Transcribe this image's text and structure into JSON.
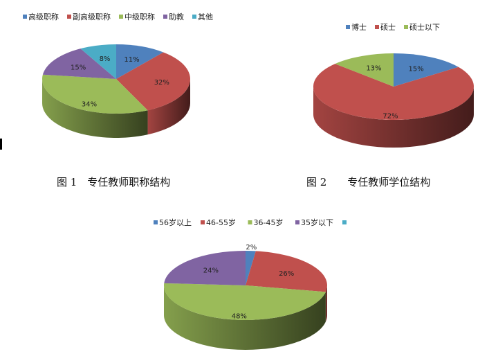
{
  "colors": {
    "blue": "#4F81BD",
    "red": "#C0504D",
    "green": "#9BBB59",
    "purple": "#8064A2",
    "cyan": "#4BACC6"
  },
  "chart_data": [
    {
      "type": "pie",
      "style": "3d",
      "caption": "图 1　专任教师职称结构",
      "legend_position": "top",
      "legend": [
        {
          "name": "高级职称",
          "color": "#4F81BD"
        },
        {
          "name": "副高级职称",
          "color": "#C0504D"
        },
        {
          "name": "中级职称",
          "color": "#9BBB59"
        },
        {
          "name": "助教",
          "color": "#8064A2"
        },
        {
          "name": "其他",
          "color": "#4BACC6"
        }
      ],
      "values": [
        11,
        32,
        34,
        15,
        8
      ],
      "labels": [
        "11%",
        "32%",
        "34%",
        "15%",
        "8%"
      ]
    },
    {
      "type": "pie",
      "style": "3d",
      "caption": "图 2　　专任教师学位结构",
      "legend_position": "top-right",
      "legend": [
        {
          "name": "博士",
          "color": "#4F81BD"
        },
        {
          "name": "硕士",
          "color": "#C0504D"
        },
        {
          "name": "硕士以下",
          "color": "#9BBB59"
        }
      ],
      "values": [
        15,
        72,
        13
      ],
      "labels": [
        "15%",
        "72%",
        "13%"
      ]
    },
    {
      "type": "pie",
      "style": "3d",
      "caption": "",
      "legend_position": "top",
      "legend": [
        {
          "name": "56岁以上",
          "color": "#4F81BD"
        },
        {
          "name": "46-55岁",
          "color": "#C0504D"
        },
        {
          "name": "36-45岁",
          "color": "#9BBB59"
        },
        {
          "name": "35岁以下",
          "color": "#8064A2"
        },
        {
          "name": "",
          "color": "#4BACC6"
        }
      ],
      "values": [
        2,
        26,
        48,
        24
      ],
      "labels": [
        "2%",
        "26%",
        "48%",
        "24%"
      ]
    }
  ]
}
